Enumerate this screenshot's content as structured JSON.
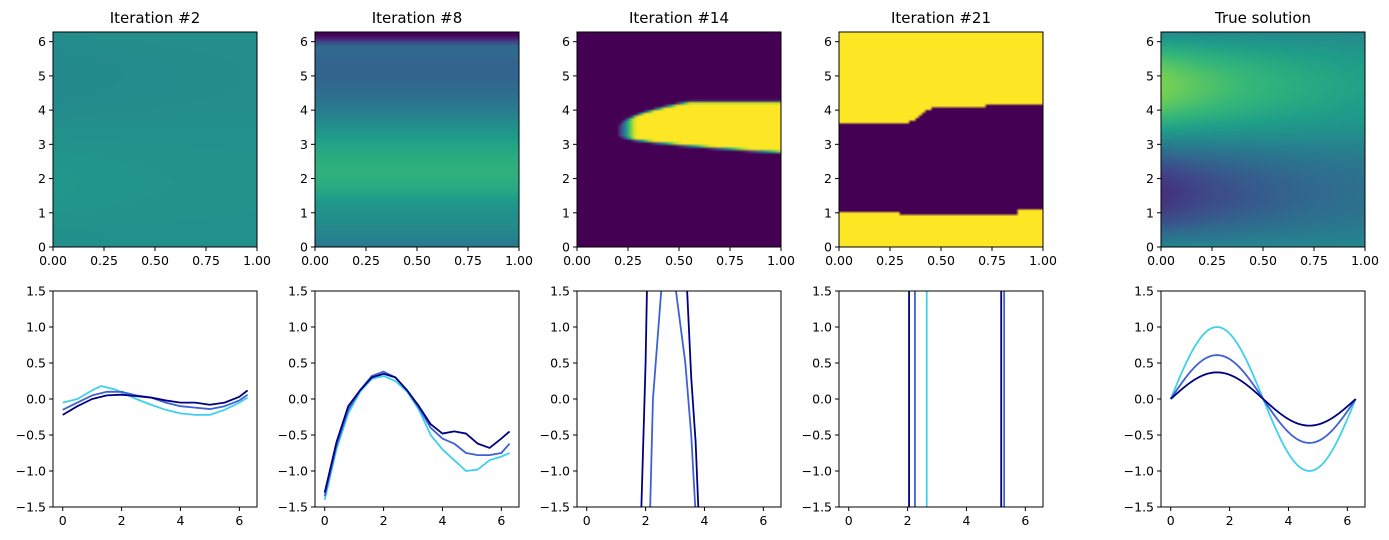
{
  "chart_data": [
    {
      "type": "heatmap",
      "title": "Iteration #2",
      "colormap": "viridis",
      "xlim": [
        0,
        1
      ],
      "ylim": [
        0,
        6.283
      ],
      "xticks": [
        "0.00",
        "0.25",
        "0.50",
        "0.75",
        "1.00"
      ],
      "yticks": [
        "0",
        "1",
        "2",
        "3",
        "4",
        "5",
        "6"
      ],
      "field": "nearly uniform, value ~0.5 with slight band near y~5"
    },
    {
      "type": "heatmap",
      "title": "Iteration #8",
      "colormap": "viridis",
      "xlim": [
        0,
        1
      ],
      "ylim": [
        0,
        6.283
      ],
      "xticks": [
        "0.00",
        "0.25",
        "0.50",
        "0.75",
        "1.00"
      ],
      "yticks": [
        "0",
        "1",
        "2",
        "3",
        "4",
        "5",
        "6"
      ],
      "field": "horizontal bands: high near y~4.5, low near y~1 and y~6.2"
    },
    {
      "type": "heatmap",
      "title": "Iteration #14",
      "colormap": "viridis",
      "xlim": [
        0,
        1
      ],
      "ylim": [
        0,
        6.283
      ],
      "xticks": [
        "0.00",
        "0.25",
        "0.50",
        "0.75",
        "1.00"
      ],
      "yticks": [
        "0",
        "1",
        "2",
        "3",
        "4",
        "5",
        "6"
      ],
      "field": "dark background with bright wedge from x~0.25 widening to y in [2.7, 4.3] at x=1"
    },
    {
      "type": "heatmap",
      "title": "Iteration #21",
      "colormap": "viridis",
      "xlim": [
        0,
        1
      ],
      "ylim": [
        0,
        6.283
      ],
      "xticks": [
        "0.00",
        "0.25",
        "0.50",
        "0.75",
        "1.00"
      ],
      "yticks": [
        "0",
        "1",
        "2",
        "3",
        "4",
        "5",
        "6"
      ],
      "field": "bright top and bottom, dark band between y~1 and y~3.6-4.2"
    },
    {
      "type": "heatmap",
      "title": "True solution",
      "colormap": "viridis",
      "xlim": [
        0,
        1
      ],
      "ylim": [
        0,
        6.283
      ],
      "xticks": [
        "0.00",
        "0.25",
        "0.50",
        "0.75",
        "1.00"
      ],
      "yticks": [
        "0",
        "1",
        "2",
        "3",
        "4",
        "5",
        "6"
      ],
      "field": "decaying sine in y: peak near y~4.7 at x=0, trough near y~1.6 at x=0"
    },
    {
      "type": "line",
      "title": "",
      "xlim": [
        -0.33,
        6.6
      ],
      "ylim": [
        -1.5,
        1.5
      ],
      "xticks": [
        "0",
        "2",
        "4",
        "6"
      ],
      "yticks": [
        "−1.5",
        "−1.0",
        "−0.5",
        "0.0",
        "0.5",
        "1.0",
        "1.5"
      ],
      "series": [
        {
          "name": "light",
          "color": "#3fd0ec",
          "x": [
            0,
            0.5,
            1,
            1.3,
            1.8,
            2.5,
            3,
            3.5,
            4,
            4.5,
            5,
            5.5,
            6,
            6.28
          ],
          "y": [
            -0.05,
            0.0,
            0.12,
            0.18,
            0.13,
            0.0,
            -0.08,
            -0.15,
            -0.2,
            -0.22,
            -0.22,
            -0.15,
            -0.05,
            0.02
          ]
        },
        {
          "name": "mid",
          "color": "#4060d6",
          "x": [
            0,
            0.5,
            1,
            1.5,
            2,
            2.5,
            3,
            3.5,
            4,
            4.5,
            5,
            5.5,
            6,
            6.28
          ],
          "y": [
            -0.15,
            -0.05,
            0.05,
            0.1,
            0.1,
            0.05,
            0.02,
            -0.05,
            -0.1,
            -0.12,
            -0.14,
            -0.1,
            -0.02,
            0.06
          ]
        },
        {
          "name": "dark",
          "color": "#000080",
          "x": [
            0,
            0.5,
            1,
            1.5,
            2,
            2.5,
            3,
            3.5,
            4,
            4.5,
            5,
            5.5,
            6,
            6.28
          ],
          "y": [
            -0.22,
            -0.1,
            0.0,
            0.05,
            0.06,
            0.04,
            0.02,
            -0.02,
            -0.05,
            -0.05,
            -0.08,
            -0.05,
            0.03,
            0.12
          ]
        }
      ]
    },
    {
      "type": "line",
      "title": "",
      "xlim": [
        -0.33,
        6.6
      ],
      "ylim": [
        -1.5,
        1.5
      ],
      "xticks": [
        "0",
        "2",
        "4",
        "6"
      ],
      "yticks": [
        "−1.5",
        "−1.0",
        "−0.5",
        "0.0",
        "0.5",
        "1.0",
        "1.5"
      ],
      "series": [
        {
          "name": "light",
          "color": "#3fd0ec",
          "x": [
            0,
            0.4,
            0.8,
            1.2,
            1.6,
            2.0,
            2.4,
            2.8,
            3.2,
            3.6,
            4.0,
            4.4,
            4.8,
            5.2,
            5.6,
            6.0,
            6.28
          ],
          "y": [
            -1.4,
            -0.7,
            -0.2,
            0.1,
            0.28,
            0.32,
            0.25,
            0.1,
            -0.15,
            -0.5,
            -0.7,
            -0.85,
            -1.0,
            -0.98,
            -0.85,
            -0.8,
            -0.75
          ]
        },
        {
          "name": "mid",
          "color": "#4060d6",
          "x": [
            0,
            0.4,
            0.8,
            1.2,
            1.6,
            2.0,
            2.4,
            2.8,
            3.2,
            3.6,
            4.0,
            4.4,
            4.8,
            5.2,
            5.6,
            6.0,
            6.28
          ],
          "y": [
            -1.35,
            -0.65,
            -0.15,
            0.12,
            0.32,
            0.38,
            0.3,
            0.12,
            -0.12,
            -0.4,
            -0.55,
            -0.62,
            -0.75,
            -0.78,
            -0.78,
            -0.75,
            -0.62
          ]
        },
        {
          "name": "dark",
          "color": "#000080",
          "x": [
            0,
            0.4,
            0.8,
            1.2,
            1.6,
            2.0,
            2.4,
            2.8,
            3.2,
            3.6,
            4.0,
            4.4,
            4.8,
            5.2,
            5.6,
            6.0,
            6.28
          ],
          "y": [
            -1.3,
            -0.6,
            -0.1,
            0.12,
            0.3,
            0.35,
            0.3,
            0.12,
            -0.1,
            -0.35,
            -0.48,
            -0.45,
            -0.48,
            -0.62,
            -0.68,
            -0.55,
            -0.45
          ]
        }
      ]
    },
    {
      "type": "line",
      "title": "",
      "xlim": [
        -0.33,
        6.6
      ],
      "ylim": [
        -1.5,
        1.5
      ],
      "xticks": [
        "0",
        "2",
        "4",
        "6"
      ],
      "yticks": [
        "−1.5",
        "−1.0",
        "−0.5",
        "0.0",
        "0.5",
        "1.0",
        "1.5"
      ],
      "series": [
        {
          "name": "mid",
          "color": "#4060d6",
          "x": [
            2.15,
            2.25,
            2.55,
            3.0,
            3.35,
            3.55,
            3.7
          ],
          "y": [
            -1.6,
            0.0,
            1.6,
            1.6,
            0.5,
            -0.5,
            -1.6
          ]
        },
        {
          "name": "dark",
          "color": "#000080",
          "x": [
            1.85,
            2.0,
            2.05,
            3.4,
            3.55,
            3.7,
            3.8
          ],
          "y": [
            -1.6,
            0.5,
            1.6,
            1.6,
            0.3,
            -0.6,
            -1.6
          ]
        }
      ]
    },
    {
      "type": "line",
      "title": "",
      "xlim": [
        -0.33,
        6.6
      ],
      "ylim": [
        -1.5,
        1.5
      ],
      "xticks": [
        "0",
        "2",
        "4",
        "6"
      ],
      "yticks": [
        "−1.5",
        "−1.0",
        "−0.5",
        "0.0",
        "0.5",
        "1.0",
        "1.5"
      ],
      "series": [
        {
          "name": "light",
          "color": "#3fd0ec",
          "x": [
            2.65,
            2.65
          ],
          "y": [
            -1.6,
            1.6
          ]
        },
        {
          "name": "mid",
          "color": "#4060d6",
          "x": [
            2.25,
            2.25,
            5.28,
            5.28
          ],
          "y": [
            -1.6,
            1.6,
            1.6,
            -1.6
          ]
        },
        {
          "name": "dark",
          "color": "#000080",
          "x": [
            2.05,
            2.05,
            5.18,
            5.18
          ],
          "y": [
            -1.6,
            1.6,
            1.6,
            -1.6
          ]
        }
      ]
    },
    {
      "type": "line",
      "title": "",
      "xlim": [
        -0.33,
        6.6
      ],
      "ylim": [
        -1.5,
        1.5
      ],
      "xticks": [
        "0",
        "2",
        "4",
        "6"
      ],
      "yticks": [
        "−1.5",
        "−1.0",
        "−0.5",
        "0.0",
        "0.5",
        "1.0",
        "1.5"
      ],
      "series": [
        {
          "name": "amplitude 1.0",
          "color": "#3fd0ec",
          "amplitude": 1.0
        },
        {
          "name": "amplitude 0.61",
          "color": "#4060d6",
          "amplitude": 0.61
        },
        {
          "name": "amplitude 0.37",
          "color": "#000080",
          "amplitude": 0.37
        }
      ]
    }
  ]
}
